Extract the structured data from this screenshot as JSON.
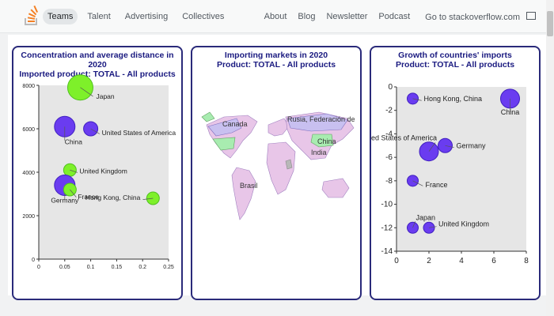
{
  "nav": {
    "left": [
      "Teams",
      "Talent",
      "Advertising",
      "Collectives"
    ],
    "right": [
      "About",
      "Blog",
      "Newsletter",
      "Podcast",
      "Go to stackoverflow.com"
    ]
  },
  "colors": {
    "blue": "#6a3cf0",
    "green": "#7ef02a",
    "title": "#1a1a80",
    "border": "#2a2a7a",
    "plot_bg": "#e6e6e6"
  },
  "panels": [
    {
      "title_line1": "Concentration and average distance in 2020",
      "title_line2": "Imported product: TOTAL - All products"
    },
    {
      "title_line1": "Importing markets in 2020",
      "title_line2": "Product: TOTAL - All products"
    },
    {
      "title_line1": "Growth of countries' imports",
      "title_line2": "Product: TOTAL - All products"
    }
  ],
  "chart_data": [
    {
      "type": "scatter",
      "title": "Concentration and average distance in 2020",
      "subtitle": "Imported product: TOTAL - All products",
      "xlim": [
        0,
        0.25
      ],
      "ylim": [
        0,
        8000
      ],
      "xticks": [
        "0",
        "0.05",
        "0.1",
        "0.15",
        "0.2",
        "0.25"
      ],
      "yticks": [
        "0",
        "2000",
        "4000",
        "6000",
        "8000"
      ],
      "points": [
        {
          "label": "Japan",
          "x": 0.08,
          "y": 7900,
          "r": 16,
          "color": "green"
        },
        {
          "label": "United States of America",
          "x": 0.1,
          "y": 6000,
          "r": 9,
          "color": "blue"
        },
        {
          "label": "China",
          "x": 0.05,
          "y": 6100,
          "r": 13,
          "color": "blue"
        },
        {
          "label": "United Kingdom",
          "x": 0.06,
          "y": 4100,
          "r": 8,
          "color": "green"
        },
        {
          "label": "Germany",
          "x": 0.05,
          "y": 3400,
          "r": 13,
          "color": "blue"
        },
        {
          "label": "France",
          "x": 0.06,
          "y": 3200,
          "r": 8,
          "color": "green"
        },
        {
          "label": "Hong Kong, China",
          "x": 0.22,
          "y": 2800,
          "r": 8,
          "color": "green"
        }
      ]
    },
    {
      "type": "other",
      "title": "Importing markets in 2020",
      "subtitle": "Product: TOTAL - All products",
      "labels": [
        "Canada",
        "Rusia, Federación de",
        "China",
        "India",
        "Brasil"
      ]
    },
    {
      "type": "scatter",
      "title": "Growth of countries' imports",
      "subtitle": "Product: TOTAL - All products",
      "xlim": [
        0,
        8
      ],
      "ylim": [
        -14,
        0
      ],
      "xticks": [
        "0",
        "2",
        "4",
        "6",
        "8"
      ],
      "yticks": [
        "0",
        "-2",
        "-4",
        "-6",
        "-8",
        "-10",
        "-12",
        "-14"
      ],
      "points": [
        {
          "label": "Hong Kong, China",
          "x": 1,
          "y": -1,
          "r": 7,
          "color": "blue"
        },
        {
          "label": "China",
          "x": 7,
          "y": -1,
          "r": 12,
          "color": "blue"
        },
        {
          "label": "United States of America",
          "x": 2,
          "y": -5.5,
          "r": 12,
          "color": "blue"
        },
        {
          "label": "Germany",
          "x": 3,
          "y": -5,
          "r": 9,
          "color": "blue"
        },
        {
          "label": "France",
          "x": 1,
          "y": -8,
          "r": 7,
          "color": "blue"
        },
        {
          "label": "Japan",
          "x": 1,
          "y": -12,
          "r": 7,
          "color": "blue"
        },
        {
          "label": "United Kingdom",
          "x": 2,
          "y": -12,
          "r": 7,
          "color": "blue"
        }
      ]
    }
  ]
}
